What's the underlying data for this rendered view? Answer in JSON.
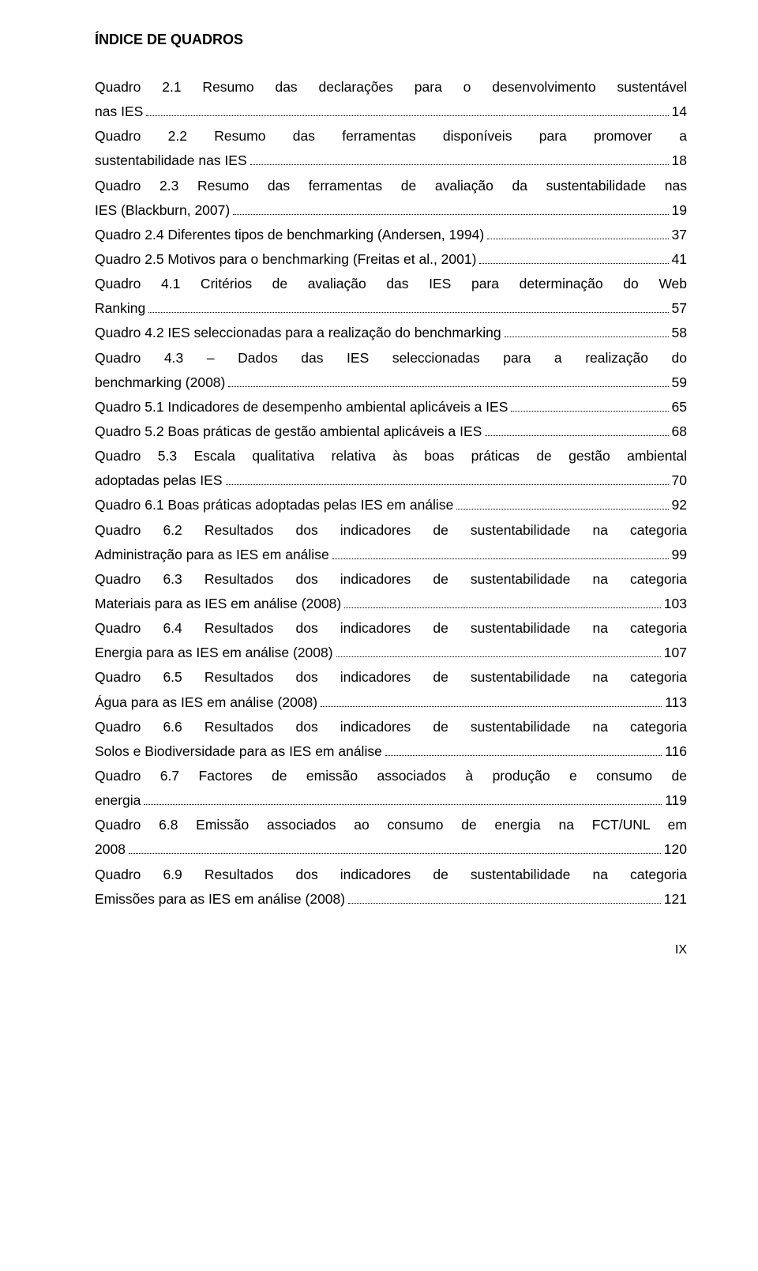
{
  "title": "ÍNDICE DE QUADROS",
  "entries": [
    {
      "pre": "Quadro 2.1 Resumo das declarações para o desenvolvimento sustentável ",
      "line2": "nas IES",
      "page": "14"
    },
    {
      "pre": "Quadro 2.2 Resumo das ferramentas disponíveis para promover a ",
      "line2": "sustentabilidade nas IES",
      "page": "18"
    },
    {
      "pre": "Quadro 2.3 Resumo das ferramentas de avaliação da sustentabilidade nas ",
      "line2": "IES (Blackburn, 2007)",
      "page": "19"
    },
    {
      "singleLine": true,
      "pre": "Quadro 2.4 Diferentes tipos de ",
      "italic": "benchmarking",
      "post": " (Andersen, 1994)",
      "page": "37"
    },
    {
      "singleLine": true,
      "pre": "Quadro 2.5 Motivos para o ",
      "italic": "benchmarking",
      "post": " (Freitas et al., 2001)",
      "page": "41"
    },
    {
      "pre": "Quadro 4.1 Critérios de avaliação das IES para determinação do Web ",
      "line2": "Ranking",
      "page": "57"
    },
    {
      "singleLine": true,
      "pre": "Quadro 4.2 IES seleccionadas para a realização do ",
      "italic": "benchmarking",
      "post": "",
      "page": "58"
    },
    {
      "pre": "Quadro 4.3 – Dados das IES seleccionadas para a realização do ",
      "line2pre": "",
      "line2italic": "benchmarking",
      "line2post": " (2008)",
      "page": "59"
    },
    {
      "singleLine": true,
      "pre": "Quadro 5.1 Indicadores de desempenho ambiental aplicáveis a IES",
      "page": "65"
    },
    {
      "singleLine": true,
      "pre": "Quadro 5.2 Boas práticas de gestão ambiental aplicáveis a IES",
      "page": "68"
    },
    {
      "pre": "Quadro 5.3 Escala qualitativa relativa às boas práticas de gestão ambiental ",
      "line2": "adoptadas pelas IES",
      "page": "70"
    },
    {
      "singleLine": true,
      "pre": "Quadro 6.1 Boas práticas adoptadas pelas IES em análise",
      "page": "92"
    },
    {
      "pre": "Quadro 6.2 Resultados dos indicadores de sustentabilidade na categoria ",
      "line2": "Administração para as IES em análise",
      "page": "99"
    },
    {
      "pre": "Quadro 6.3 Resultados dos indicadores de sustentabilidade na categoria ",
      "line2": "Materiais para as IES em análise (2008)",
      "page": "103"
    },
    {
      "pre": "Quadro 6.4 Resultados dos indicadores de sustentabilidade na categoria ",
      "line2": "Energia para as IES em análise (2008)",
      "page": "107"
    },
    {
      "pre": "Quadro 6.5 Resultados dos indicadores de sustentabilidade na categoria ",
      "line2": "Água para as IES em análise (2008)",
      "page": "113"
    },
    {
      "pre": "Quadro 6.6 Resultados dos indicadores de sustentabilidade na categoria ",
      "line2": "Solos e Biodiversidade para as IES em análise",
      "page": "116"
    },
    {
      "pre": "Quadro 6.7 Factores de emissão associados à produção e consumo de ",
      "line2": "energia",
      "page": "119"
    },
    {
      "pre": "Quadro 6.8 Emissão associados ao consumo de energia na FCT/UNL em ",
      "line2": "2008",
      "page": "120"
    },
    {
      "pre": "Quadro 6.9 Resultados dos indicadores de sustentabilidade na categoria ",
      "line2": "Emissões para as IES em análise (2008)",
      "page": "121"
    }
  ],
  "footer": "IX"
}
